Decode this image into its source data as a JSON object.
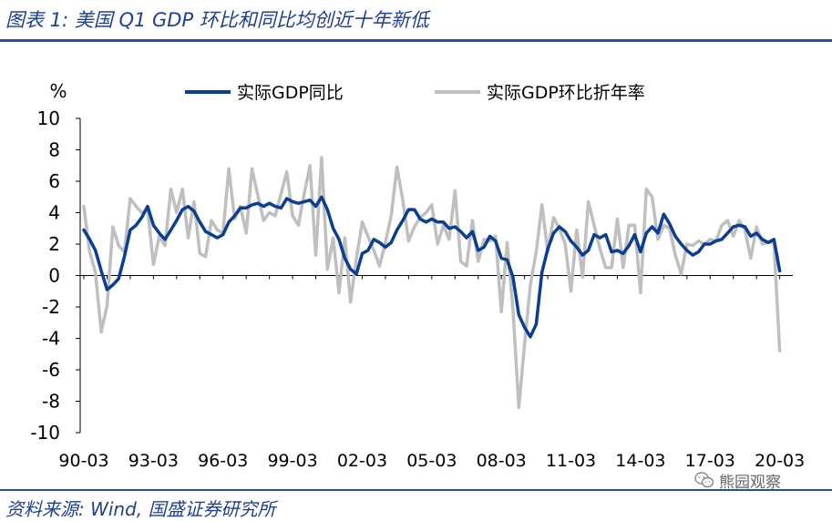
{
  "title": "图表 1:  美国 Q1 GDP 环比和同比均创近十年新低",
  "source": "资料来源:  Wind,  国盛证券研究所",
  "watermark": "熊园观察",
  "colors": {
    "accent": "#2a4e9c",
    "title": "#1f3f8f",
    "yoy": "#0b3d91",
    "qoq": "#bfbfbf"
  },
  "chart_data": {
    "type": "line",
    "ylabel": "%",
    "ylim": [
      -10,
      10
    ],
    "yticks": [
      10,
      8,
      6,
      4,
      2,
      0,
      -2,
      -4,
      -6,
      -8,
      -10
    ],
    "xlim": [
      1990.0,
      2020.25
    ],
    "xticks": [
      "90-03",
      "93-03",
      "96-03",
      "99-03",
      "02-03",
      "05-03",
      "08-03",
      "11-03",
      "14-03",
      "17-03",
      "20-03"
    ],
    "legend_position": "top",
    "series": [
      {
        "name": "实际GDP同比",
        "points": [
          [
            1990.0,
            2.9
          ],
          [
            1990.25,
            2.3
          ],
          [
            1990.5,
            1.6
          ],
          [
            1990.75,
            0.3
          ],
          [
            1991.0,
            -0.9
          ],
          [
            1991.25,
            -0.6
          ],
          [
            1991.5,
            -0.2
          ],
          [
            1991.75,
            1.2
          ],
          [
            1992.0,
            2.9
          ],
          [
            1992.25,
            3.2
          ],
          [
            1992.5,
            3.7
          ],
          [
            1992.75,
            4.4
          ],
          [
            1993.0,
            3.2
          ],
          [
            1993.25,
            2.7
          ],
          [
            1993.5,
            2.3
          ],
          [
            1993.75,
            2.9
          ],
          [
            1994.0,
            3.5
          ],
          [
            1994.25,
            4.2
          ],
          [
            1994.5,
            4.4
          ],
          [
            1994.75,
            4.1
          ],
          [
            1995.0,
            3.4
          ],
          [
            1995.25,
            2.8
          ],
          [
            1995.5,
            2.6
          ],
          [
            1995.75,
            2.4
          ],
          [
            1996.0,
            2.6
          ],
          [
            1996.25,
            3.4
          ],
          [
            1996.5,
            3.8
          ],
          [
            1996.75,
            4.3
          ],
          [
            1997.0,
            4.3
          ],
          [
            1997.25,
            4.5
          ],
          [
            1997.5,
            4.6
          ],
          [
            1997.75,
            4.4
          ],
          [
            1998.0,
            4.6
          ],
          [
            1998.25,
            4.4
          ],
          [
            1998.5,
            4.3
          ],
          [
            1998.75,
            4.9
          ],
          [
            1999.0,
            4.7
          ],
          [
            1999.25,
            4.6
          ],
          [
            1999.5,
            4.7
          ],
          [
            1999.75,
            4.8
          ],
          [
            2000.0,
            4.4
          ],
          [
            2000.25,
            5.0
          ],
          [
            2000.5,
            4.2
          ],
          [
            2000.75,
            3.0
          ],
          [
            2001.0,
            2.3
          ],
          [
            2001.25,
            1.1
          ],
          [
            2001.5,
            0.4
          ],
          [
            2001.75,
            0.1
          ],
          [
            2002.0,
            1.4
          ],
          [
            2002.25,
            1.6
          ],
          [
            2002.5,
            2.3
          ],
          [
            2002.75,
            2.1
          ],
          [
            2003.0,
            1.8
          ],
          [
            2003.25,
            2.1
          ],
          [
            2003.5,
            2.9
          ],
          [
            2003.75,
            3.5
          ],
          [
            2004.0,
            4.2
          ],
          [
            2004.25,
            4.2
          ],
          [
            2004.5,
            3.6
          ],
          [
            2004.75,
            3.4
          ],
          [
            2005.0,
            3.6
          ],
          [
            2005.25,
            3.4
          ],
          [
            2005.5,
            3.4
          ],
          [
            2005.75,
            3.0
          ],
          [
            2006.0,
            3.1
          ],
          [
            2006.25,
            2.8
          ],
          [
            2006.5,
            2.4
          ],
          [
            2006.75,
            2.8
          ],
          [
            2007.0,
            1.6
          ],
          [
            2007.25,
            1.8
          ],
          [
            2007.5,
            2.5
          ],
          [
            2007.75,
            2.2
          ],
          [
            2008.0,
            1.1
          ],
          [
            2008.25,
            1.0
          ],
          [
            2008.5,
            -0.1
          ],
          [
            2008.75,
            -2.5
          ],
          [
            2009.0,
            -3.3
          ],
          [
            2009.25,
            -3.9
          ],
          [
            2009.5,
            -3.1
          ],
          [
            2009.75,
            0.2
          ],
          [
            2010.0,
            1.7
          ],
          [
            2010.25,
            2.7
          ],
          [
            2010.5,
            3.1
          ],
          [
            2010.75,
            2.8
          ],
          [
            2011.0,
            2.2
          ],
          [
            2011.25,
            1.8
          ],
          [
            2011.5,
            1.3
          ],
          [
            2011.75,
            1.6
          ],
          [
            2012.0,
            2.6
          ],
          [
            2012.25,
            2.4
          ],
          [
            2012.5,
            2.6
          ],
          [
            2012.75,
            1.5
          ],
          [
            2013.0,
            1.6
          ],
          [
            2013.25,
            1.4
          ],
          [
            2013.5,
            1.9
          ],
          [
            2013.75,
            2.6
          ],
          [
            2014.0,
            1.5
          ],
          [
            2014.25,
            2.7
          ],
          [
            2014.5,
            3.1
          ],
          [
            2014.75,
            2.7
          ],
          [
            2015.0,
            3.9
          ],
          [
            2015.25,
            3.3
          ],
          [
            2015.5,
            2.5
          ],
          [
            2015.75,
            2.0
          ],
          [
            2016.0,
            1.6
          ],
          [
            2016.25,
            1.3
          ],
          [
            2016.5,
            1.5
          ],
          [
            2016.75,
            2.0
          ],
          [
            2017.0,
            2.0
          ],
          [
            2017.25,
            2.2
          ],
          [
            2017.5,
            2.3
          ],
          [
            2017.75,
            2.7
          ],
          [
            2018.0,
            3.1
          ],
          [
            2018.25,
            3.2
          ],
          [
            2018.5,
            3.1
          ],
          [
            2018.75,
            2.5
          ],
          [
            2019.0,
            2.7
          ],
          [
            2019.25,
            2.3
          ],
          [
            2019.5,
            2.1
          ],
          [
            2019.75,
            2.3
          ],
          [
            2020.0,
            0.3
          ]
        ]
      },
      {
        "name": "实际GDP环比折年率",
        "points": [
          [
            1990.0,
            4.4
          ],
          [
            1990.25,
            1.5
          ],
          [
            1990.5,
            0.2
          ],
          [
            1990.75,
            -3.6
          ],
          [
            1991.0,
            -1.9
          ],
          [
            1991.25,
            3.1
          ],
          [
            1991.5,
            1.9
          ],
          [
            1991.75,
            1.5
          ],
          [
            1992.0,
            4.9
          ],
          [
            1992.25,
            4.4
          ],
          [
            1992.5,
            4.0
          ],
          [
            1992.75,
            4.2
          ],
          [
            1993.0,
            0.7
          ],
          [
            1993.25,
            2.5
          ],
          [
            1993.5,
            1.9
          ],
          [
            1993.75,
            5.5
          ],
          [
            1994.0,
            4.0
          ],
          [
            1994.25,
            5.5
          ],
          [
            1994.5,
            2.4
          ],
          [
            1994.75,
            4.7
          ],
          [
            1995.0,
            1.4
          ],
          [
            1995.25,
            1.2
          ],
          [
            1995.5,
            3.5
          ],
          [
            1995.75,
            2.9
          ],
          [
            1996.0,
            2.7
          ],
          [
            1996.25,
            6.8
          ],
          [
            1996.5,
            3.6
          ],
          [
            1996.75,
            4.4
          ],
          [
            1997.0,
            2.7
          ],
          [
            1997.25,
            6.8
          ],
          [
            1997.5,
            5.1
          ],
          [
            1997.75,
            3.5
          ],
          [
            1998.0,
            4.0
          ],
          [
            1998.25,
            3.8
          ],
          [
            1998.5,
            5.2
          ],
          [
            1998.75,
            6.6
          ],
          [
            1999.0,
            3.8
          ],
          [
            1999.25,
            3.2
          ],
          [
            1999.5,
            5.2
          ],
          [
            1999.75,
            7.0
          ],
          [
            2000.0,
            1.3
          ],
          [
            2000.25,
            7.5
          ],
          [
            2000.5,
            0.4
          ],
          [
            2000.75,
            2.4
          ],
          [
            2001.0,
            -1.1
          ],
          [
            2001.25,
            2.4
          ],
          [
            2001.5,
            -1.7
          ],
          [
            2001.75,
            1.1
          ],
          [
            2002.0,
            3.4
          ],
          [
            2002.25,
            2.5
          ],
          [
            2002.5,
            1.6
          ],
          [
            2002.75,
            0.6
          ],
          [
            2003.0,
            2.1
          ],
          [
            2003.25,
            3.8
          ],
          [
            2003.5,
            6.9
          ],
          [
            2003.75,
            4.8
          ],
          [
            2004.0,
            2.2
          ],
          [
            2004.25,
            3.1
          ],
          [
            2004.5,
            3.7
          ],
          [
            2004.75,
            4.0
          ],
          [
            2005.0,
            4.5
          ],
          [
            2005.25,
            2.0
          ],
          [
            2005.5,
            3.2
          ],
          [
            2005.75,
            2.3
          ],
          [
            2006.0,
            5.4
          ],
          [
            2006.25,
            0.9
          ],
          [
            2006.5,
            0.6
          ],
          [
            2006.75,
            3.5
          ],
          [
            2007.0,
            0.9
          ],
          [
            2007.25,
            2.3
          ],
          [
            2007.5,
            2.2
          ],
          [
            2007.75,
            2.5
          ],
          [
            2008.0,
            -2.3
          ],
          [
            2008.25,
            2.1
          ],
          [
            2008.5,
            -2.1
          ],
          [
            2008.75,
            -8.4
          ],
          [
            2009.0,
            -4.4
          ],
          [
            2009.25,
            -0.6
          ],
          [
            2009.5,
            1.5
          ],
          [
            2009.75,
            4.5
          ],
          [
            2010.0,
            1.5
          ],
          [
            2010.25,
            3.7
          ],
          [
            2010.5,
            3.0
          ],
          [
            2010.75,
            2.0
          ],
          [
            2011.0,
            -1.0
          ],
          [
            2011.25,
            2.9
          ],
          [
            2011.5,
            -0.1
          ],
          [
            2011.75,
            4.7
          ],
          [
            2012.0,
            3.2
          ],
          [
            2012.25,
            1.7
          ],
          [
            2012.5,
            0.5
          ],
          [
            2012.75,
            0.5
          ],
          [
            2013.0,
            3.6
          ],
          [
            2013.25,
            0.5
          ],
          [
            2013.5,
            3.2
          ],
          [
            2013.75,
            3.2
          ],
          [
            2014.0,
            -1.1
          ],
          [
            2014.25,
            5.5
          ],
          [
            2014.5,
            5.0
          ],
          [
            2014.75,
            2.3
          ],
          [
            2015.0,
            3.2
          ],
          [
            2015.25,
            3.0
          ],
          [
            2015.5,
            1.3
          ],
          [
            2015.75,
            0.1
          ],
          [
            2016.0,
            2.0
          ],
          [
            2016.25,
            1.9
          ],
          [
            2016.5,
            2.2
          ],
          [
            2016.75,
            2.0
          ],
          [
            2017.0,
            2.3
          ],
          [
            2017.25,
            2.2
          ],
          [
            2017.5,
            3.2
          ],
          [
            2017.75,
            3.5
          ],
          [
            2018.0,
            2.5
          ],
          [
            2018.25,
            3.5
          ],
          [
            2018.5,
            2.9
          ],
          [
            2018.75,
            1.1
          ],
          [
            2019.0,
            3.1
          ],
          [
            2019.25,
            2.0
          ],
          [
            2019.5,
            2.1
          ],
          [
            2019.75,
            2.1
          ],
          [
            2020.0,
            -4.8
          ]
        ]
      }
    ]
  }
}
